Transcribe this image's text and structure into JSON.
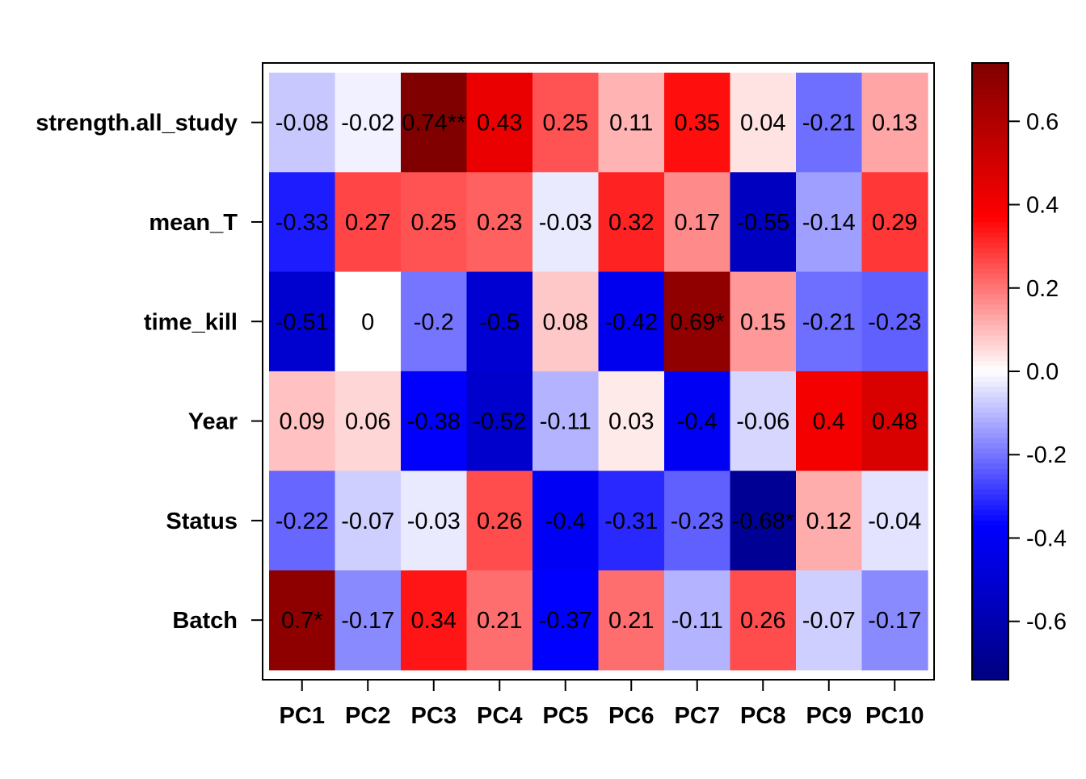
{
  "chart_data": {
    "type": "heatmap",
    "rows": [
      "strength.all_study",
      "mean_T",
      "time_kill",
      "Year",
      "Status",
      "Batch"
    ],
    "columns": [
      "PC1",
      "PC2",
      "PC3",
      "PC4",
      "PC5",
      "PC6",
      "PC7",
      "PC8",
      "PC9",
      "PC10"
    ],
    "values": [
      [
        -0.08,
        -0.02,
        0.74,
        0.43,
        0.25,
        0.11,
        0.35,
        0.04,
        -0.21,
        0.13
      ],
      [
        -0.33,
        0.27,
        0.25,
        0.23,
        -0.03,
        0.32,
        0.17,
        -0.55,
        -0.14,
        0.29
      ],
      [
        -0.51,
        0,
        -0.2,
        -0.5,
        0.08,
        -0.42,
        0.69,
        0.15,
        -0.21,
        -0.23
      ],
      [
        0.09,
        0.06,
        -0.38,
        -0.52,
        -0.11,
        0.03,
        -0.4,
        -0.06,
        0.4,
        0.48
      ],
      [
        -0.22,
        -0.07,
        -0.03,
        0.26,
        -0.4,
        -0.31,
        -0.23,
        -0.68,
        0.12,
        -0.04
      ],
      [
        0.7,
        -0.17,
        0.34,
        0.21,
        -0.37,
        0.21,
        -0.11,
        0.26,
        -0.07,
        -0.17
      ]
    ],
    "cell_labels": [
      [
        "-0.08",
        "-0.02",
        "0.74**",
        "0.43",
        "0.25",
        "0.11",
        "0.35",
        "0.04",
        "-0.21",
        "0.13"
      ],
      [
        "-0.33",
        "0.27",
        "0.25",
        "0.23",
        "-0.03",
        "0.32",
        "0.17",
        "-0.55",
        "-0.14",
        "0.29"
      ],
      [
        "-0.51",
        "0",
        "-0.2",
        "-0.5",
        "0.08",
        "-0.42",
        "0.69*",
        "0.15",
        "-0.21",
        "-0.23"
      ],
      [
        "0.09",
        "0.06",
        "-0.38",
        "-0.52",
        "-0.11",
        "0.03",
        "-0.4",
        "-0.06",
        "0.4",
        "0.48"
      ],
      [
        "-0.22",
        "-0.07",
        "-0.03",
        "0.26",
        "-0.4",
        "-0.31",
        "-0.23",
        "-0.68*",
        "0.12",
        "-0.04"
      ],
      [
        "0.7*",
        "-0.17",
        "0.34",
        "0.21",
        "-0.37",
        "0.21",
        "-0.11",
        "0.26",
        "-0.07",
        "-0.17"
      ]
    ],
    "colorbar": {
      "range": [
        -0.74,
        0.74
      ],
      "ticks": [
        -0.6,
        -0.4,
        -0.2,
        0.0,
        0.2,
        0.4,
        0.6
      ],
      "tick_labels": [
        "-0.6",
        "-0.4",
        "-0.2",
        "0.0",
        "0.2",
        "0.4",
        "0.6"
      ],
      "colors": [
        "#000080",
        "#0000FF",
        "#FFFFFF",
        "#FF0000",
        "#800000"
      ],
      "position": "right"
    },
    "title": "",
    "xlabel": "",
    "ylabel": "",
    "grid": false
  }
}
